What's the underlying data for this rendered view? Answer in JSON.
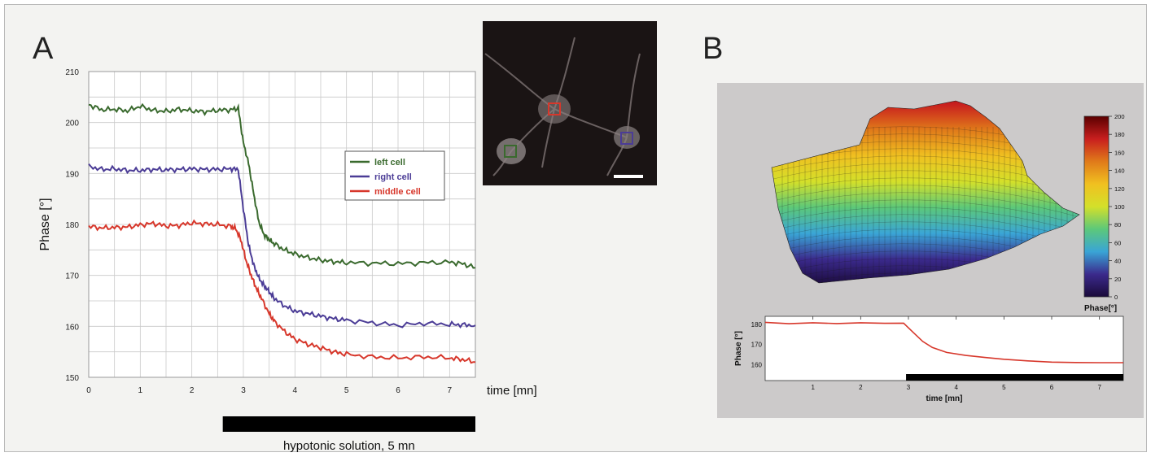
{
  "panels": {
    "a_label": "A",
    "b_label": "B"
  },
  "chart_data": [
    {
      "type": "line",
      "xlabel": "time [mn]",
      "ylabel": "Phase [°]",
      "xlim": [
        0,
        7.5
      ],
      "ylim": [
        150,
        210
      ],
      "xticks": [
        "0",
        "1",
        "2",
        "3",
        "4",
        "5",
        "6",
        "7"
      ],
      "yticks": [
        "150",
        "160",
        "170",
        "180",
        "190",
        "200",
        "210"
      ],
      "grid": true,
      "legend_position": "right",
      "series": [
        {
          "name": "left cell",
          "color": "#3a6a2e",
          "x": [
            0,
            0.25,
            0.5,
            0.75,
            1,
            1.25,
            1.5,
            1.75,
            2,
            2.25,
            2.5,
            2.75,
            2.9,
            3,
            3.1,
            3.2,
            3.3,
            3.4,
            3.5,
            3.6,
            3.8,
            4,
            4.25,
            4.5,
            4.75,
            5,
            5.5,
            6,
            6.5,
            7,
            7.25,
            7.5
          ],
          "y": [
            203.5,
            202.5,
            202.6,
            202.3,
            203.2,
            202.4,
            202.2,
            202.6,
            202.3,
            202.1,
            202.4,
            202.5,
            202.8,
            196,
            192,
            186,
            180.5,
            178,
            177,
            176.2,
            175,
            174.2,
            173.5,
            173,
            172.7,
            172.5,
            172.4,
            172.3,
            172.5,
            172.6,
            172.3,
            171.5
          ]
        },
        {
          "name": "right cell",
          "color": "#4b3c96",
          "x": [
            0,
            0.25,
            0.5,
            0.75,
            1,
            1.25,
            1.5,
            1.75,
            2,
            2.25,
            2.5,
            2.75,
            2.9,
            3,
            3.1,
            3.2,
            3.3,
            3.4,
            3.5,
            3.6,
            3.8,
            4,
            4.25,
            4.5,
            4.75,
            5,
            5.5,
            6,
            6.5,
            7,
            7.25,
            7.5
          ],
          "y": [
            191.4,
            190.8,
            190.9,
            190.6,
            190.6,
            190.8,
            190.7,
            190.8,
            190.9,
            190.8,
            190.8,
            190.9,
            190.8,
            183,
            176,
            172,
            169.5,
            168,
            166.8,
            165.5,
            164,
            163,
            162.5,
            162,
            161.5,
            161.2,
            160.7,
            160.2,
            160.6,
            160.4,
            160.3,
            160.2
          ]
        },
        {
          "name": "middle cell",
          "color": "#d7372b",
          "x": [
            0,
            0.25,
            0.5,
            0.75,
            1,
            1.25,
            1.5,
            1.75,
            2,
            2.25,
            2.5,
            2.75,
            2.85,
            2.95,
            3.05,
            3.15,
            3.25,
            3.35,
            3.5,
            3.6,
            3.8,
            4,
            4.25,
            4.5,
            4.75,
            5,
            5.5,
            6,
            6.5,
            7,
            7.25,
            7.5
          ],
          "y": [
            179.6,
            179.3,
            179.4,
            179.5,
            179.9,
            180.2,
            179.7,
            179.8,
            180.3,
            180.1,
            180,
            179.6,
            179.2,
            177,
            173,
            170,
            167.5,
            165.5,
            162.5,
            161,
            159,
            157.5,
            156.5,
            155.8,
            155,
            154.5,
            154,
            153.8,
            154,
            153.8,
            153.5,
            153
          ]
        }
      ],
      "annotation": "hypotonic solution, 5 mn",
      "treatment_span": [
        2.6,
        7.5
      ]
    },
    {
      "type": "heatmap",
      "subtype": "3d-surface",
      "colorbar_label": "Phase[°]",
      "colorbar_ticks": [
        "0",
        "20",
        "40",
        "60",
        "80",
        "100",
        "120",
        "140",
        "160",
        "180",
        "200"
      ],
      "colormap": [
        "#1a0a3a",
        "#3b2a8c",
        "#3aa5d6",
        "#5cc87a",
        "#d4e02a",
        "#f0c020",
        "#e07a1a",
        "#c81e1e",
        "#5a0000"
      ]
    },
    {
      "type": "line",
      "xlabel": "time [mn]",
      "ylabel": "Phase [°]",
      "xlim": [
        0,
        7.5
      ],
      "ylim": [
        152,
        184
      ],
      "xticks": [
        "1",
        "2",
        "3",
        "4",
        "5",
        "6",
        "7"
      ],
      "yticks": [
        "180",
        "170",
        "160"
      ],
      "series": [
        {
          "color": "#d7372b",
          "x": [
            0,
            0.5,
            1,
            1.5,
            2,
            2.5,
            2.9,
            3.1,
            3.3,
            3.5,
            3.8,
            4.2,
            4.6,
            5,
            5.5,
            6,
            6.5,
            7,
            7.5
          ],
          "y": [
            181,
            180.3,
            180.8,
            180.4,
            180.8,
            180.5,
            180.6,
            176,
            171.5,
            168.5,
            166,
            164.5,
            163.5,
            162.6,
            161.8,
            161.2,
            161,
            160.9,
            160.9
          ]
        }
      ],
      "treatment_span": [
        2.95,
        7.5
      ]
    }
  ]
}
